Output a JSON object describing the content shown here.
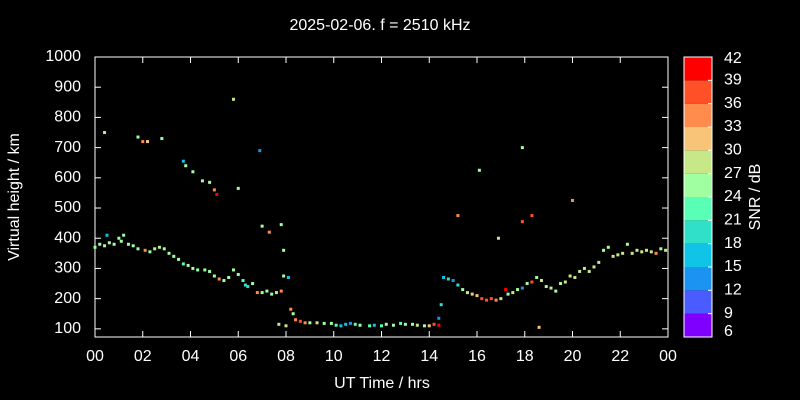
{
  "chart_data": {
    "type": "scatter",
    "title": "2025-02-06. f = 2510 kHz",
    "x_label": "UT Time / hrs",
    "y_label": "Virtual height / km",
    "colorbar_label": "SNR / dB",
    "xlim": [
      0,
      24
    ],
    "xticks": [
      {
        "value": 0,
        "label": "00"
      },
      {
        "value": 2,
        "label": "02"
      },
      {
        "value": 4,
        "label": "04"
      },
      {
        "value": 6,
        "label": "06"
      },
      {
        "value": 8,
        "label": "08"
      },
      10,
      12,
      14,
      16,
      18,
      20,
      22,
      {
        "value": 24,
        "label": "00"
      }
    ],
    "ylim": [
      73,
      1000
    ],
    "yticks": [
      100,
      200,
      300,
      400,
      500,
      600,
      700,
      800,
      900,
      1000
    ],
    "colorbar": {
      "lim": [
        6,
        42
      ],
      "ticks": [
        6,
        9,
        12,
        15,
        18,
        21,
        24,
        27,
        30,
        33,
        36,
        39,
        42
      ],
      "colors": [
        "#8000ff",
        "#4a5cff",
        "#1a94f0",
        "#10c4e8",
        "#30e0c8",
        "#58ffb4",
        "#a0ffa0",
        "#c8e888",
        "#f8c478",
        "#ff8c4c",
        "#ff5028",
        "#ff0000"
      ]
    },
    "x": [
      0.0,
      0.2,
      0.4,
      0.5,
      0.6,
      0.8,
      1.0,
      1.1,
      1.2,
      1.4,
      1.6,
      1.8,
      2.1,
      2.3,
      2.5,
      2.7,
      2.9,
      3.1,
      3.3,
      3.5,
      3.7,
      3.9,
      4.1,
      4.3,
      4.6,
      4.8,
      5.0,
      5.2,
      5.4,
      5.6,
      5.8,
      6.0,
      6.2,
      6.3,
      6.4,
      6.6,
      6.8,
      7.0,
      7.2,
      7.4,
      7.6,
      7.8,
      7.9,
      8.1,
      8.2,
      8.3,
      8.4,
      8.6,
      8.8,
      9.0,
      9.3,
      9.6,
      9.9,
      10.1,
      10.3,
      10.5,
      10.7,
      10.9,
      11.1,
      11.5,
      11.7,
      12.0,
      12.2,
      12.5,
      12.8,
      13.0,
      13.3,
      13.5,
      13.8,
      14.0,
      14.2,
      14.4,
      14.4,
      14.5,
      14.6,
      14.8,
      15.0,
      15.2,
      15.4,
      15.6,
      15.8,
      16.0,
      16.2,
      16.4,
      16.6,
      16.8,
      17.0,
      17.2,
      17.3,
      17.5,
      17.7,
      17.9,
      18.1,
      18.3,
      18.5,
      18.7,
      18.9,
      19.1,
      19.3,
      19.5,
      19.7,
      19.9,
      20.1,
      20.3,
      20.5,
      20.7,
      20.9,
      21.1,
      21.3,
      21.5,
      21.7,
      21.9,
      22.1,
      22.3,
      22.5,
      22.7,
      22.9,
      23.1,
      23.3,
      23.5,
      23.7,
      23.9,
      0.4,
      1.8,
      2.0,
      2.2,
      2.8,
      3.7,
      3.8,
      4.1,
      4.5,
      4.8,
      5.0,
      5.1,
      5.8,
      6.0,
      6.9,
      7.0,
      7.3,
      7.8,
      7.9,
      7.7,
      8.0,
      15.2,
      16.1,
      16.9,
      17.9,
      17.9,
      18.3,
      18.6,
      20.0
    ],
    "y": [
      370,
      380,
      375,
      410,
      385,
      380,
      400,
      390,
      410,
      380,
      375,
      365,
      360,
      355,
      365,
      370,
      365,
      350,
      340,
      330,
      315,
      310,
      300,
      295,
      295,
      290,
      275,
      265,
      260,
      270,
      295,
      280,
      260,
      245,
      240,
      250,
      220,
      220,
      225,
      215,
      220,
      225,
      275,
      270,
      165,
      150,
      130,
      125,
      120,
      120,
      120,
      118,
      118,
      112,
      110,
      115,
      118,
      115,
      112,
      110,
      112,
      110,
      115,
      112,
      118,
      115,
      115,
      112,
      110,
      110,
      115,
      112,
      135,
      180,
      270,
      265,
      260,
      245,
      230,
      220,
      215,
      210,
      200,
      195,
      200,
      195,
      200,
      230,
      215,
      220,
      230,
      235,
      250,
      255,
      270,
      260,
      240,
      235,
      225,
      250,
      255,
      275,
      270,
      290,
      300,
      290,
      305,
      320,
      360,
      370,
      340,
      345,
      350,
      380,
      350,
      360,
      355,
      360,
      355,
      350,
      365,
      360,
      750,
      735,
      720,
      720,
      730,
      655,
      640,
      620,
      590,
      585,
      560,
      545,
      860,
      565,
      690,
      440,
      420,
      445,
      360,
      115,
      110,
      475,
      625,
      400,
      700,
      455,
      475,
      105,
      525
    ],
    "snr": [
      24,
      24,
      24,
      15,
      24,
      24,
      24,
      24,
      24,
      24,
      24,
      24,
      33,
      24,
      24,
      27,
      24,
      24,
      24,
      24,
      21,
      24,
      24,
      24,
      24,
      24,
      24,
      33,
      24,
      24,
      24,
      24,
      21,
      18,
      18,
      24,
      33,
      24,
      24,
      24,
      27,
      33,
      24,
      15,
      33,
      24,
      33,
      36,
      33,
      24,
      27,
      24,
      24,
      21,
      15,
      15,
      12,
      21,
      24,
      21,
      15,
      21,
      24,
      24,
      21,
      24,
      24,
      27,
      24,
      30,
      36,
      39,
      12,
      18,
      15,
      18,
      12,
      18,
      24,
      27,
      30,
      30,
      36,
      36,
      36,
      33,
      27,
      39,
      24,
      27,
      24,
      12,
      24,
      36,
      24,
      27,
      24,
      27,
      24,
      24,
      27,
      27,
      27,
      27,
      27,
      27,
      27,
      27,
      24,
      24,
      27,
      27,
      27,
      24,
      27,
      27,
      27,
      27,
      27,
      33,
      24,
      27,
      27,
      24,
      33,
      30,
      24,
      15,
      24,
      24,
      24,
      24,
      33,
      39,
      27,
      24,
      12,
      24,
      33,
      24,
      24,
      27,
      27,
      33,
      24,
      27,
      24,
      36,
      36,
      30,
      33
    ]
  }
}
